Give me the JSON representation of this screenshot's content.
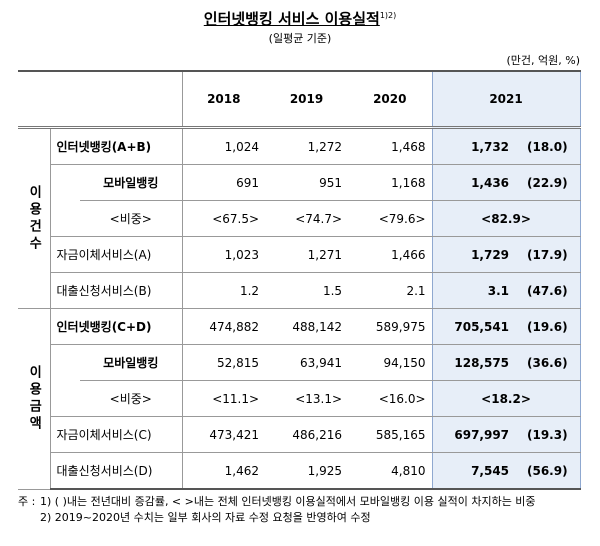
{
  "header": {
    "title": "인터넷뱅킹 서비스 이용실적",
    "title_note": "1)2)",
    "subtitle": "(일평균 기준)",
    "units": "(만건, 억원, %)"
  },
  "table": {
    "columns": [
      "2018",
      "2019",
      "2020",
      "2021"
    ],
    "groups": [
      {
        "label": "이용건수",
        "rows": [
          {
            "label": "인터넷뱅킹(A+B)",
            "level": 0,
            "bold": true,
            "values": [
              "1,024",
              "1,272",
              "1,468",
              "1,732",
              "(18.0)"
            ]
          },
          {
            "label": "모바일뱅킹",
            "level": 1,
            "bold": true,
            "values": [
              "691",
              "951",
              "1,168",
              "1,436",
              "(22.9)"
            ]
          },
          {
            "label": "<비중>",
            "level": 1,
            "bold": false,
            "values": [
              "<67.5>",
              "<74.7>",
              "<79.6>",
              "<82.9>"
            ]
          },
          {
            "label": "자금이체서비스(A)",
            "level": 0,
            "bold": false,
            "values": [
              "1,023",
              "1,271",
              "1,466",
              "1,729",
              "(17.9)"
            ]
          },
          {
            "label": "대출신청서비스(B)",
            "level": 0,
            "bold": false,
            "values": [
              "1.2",
              "1.5",
              "2.1",
              "3.1",
              "(47.6)"
            ]
          }
        ]
      },
      {
        "label": "이용금액",
        "rows": [
          {
            "label": "인터넷뱅킹(C+D)",
            "level": 0,
            "bold": true,
            "values": [
              "474,882",
              "488,142",
              "589,975",
              "705,541",
              "(19.6)"
            ]
          },
          {
            "label": "모바일뱅킹",
            "level": 1,
            "bold": true,
            "values": [
              "52,815",
              "63,941",
              "94,150",
              "128,575",
              "(36.6)"
            ]
          },
          {
            "label": "<비중>",
            "level": 1,
            "bold": false,
            "values": [
              "<11.1>",
              "<13.1>",
              "<16.0>",
              "<18.2>"
            ]
          },
          {
            "label": "자금이체서비스(C)",
            "level": 0,
            "bold": false,
            "values": [
              "473,421",
              "486,216",
              "585,165",
              "697,997",
              "(19.3)"
            ]
          },
          {
            "label": "대출신청서비스(D)",
            "level": 0,
            "bold": false,
            "values": [
              "1,462",
              "1,925",
              "4,810",
              "7,545",
              "(56.9)"
            ]
          }
        ]
      }
    ]
  },
  "notes": {
    "label": "주 :",
    "items": [
      "1) ( )내는 전년대비 증감률, < >내는 전체 인터넷뱅킹 이용실적에서 모바일뱅킹 이용 실적이 차지하는 비중",
      "2) 2019~2020년 수치는 일부 회사의 자료 수정 요청을 반영하여 수정"
    ]
  }
}
